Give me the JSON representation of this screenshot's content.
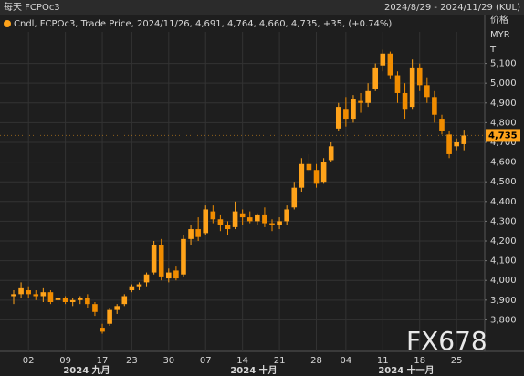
{
  "chart_data": {
    "type": "candlestick",
    "title": "每天 FCPOc3",
    "date_range": "2024/8/29 - 2024/11/29 (KUL)",
    "legend_text": "Cndl, FCPOc3, Trade Price, 2024/11/26, 4,691, 4,764, 4,660, 4,735, +35, (+0.74%)",
    "y_axis_labels": [
      "价格",
      "MYR",
      "T"
    ],
    "watermark": "FX678",
    "categories": [
      null,
      null,
      "02",
      null,
      null,
      null,
      null,
      "09",
      null,
      null,
      null,
      null,
      "17",
      null,
      null,
      null,
      "23",
      null,
      null,
      null,
      null,
      "30",
      null,
      null,
      null,
      null,
      "07",
      null,
      null,
      null,
      null,
      "14",
      null,
      null,
      null,
      null,
      "21",
      null,
      null,
      null,
      null,
      "28",
      null,
      null,
      null,
      "04",
      null,
      null,
      null,
      null,
      "11",
      null,
      null,
      null,
      null,
      "18",
      null,
      null,
      null,
      null,
      "25",
      null
    ],
    "month_labels": [
      "2024 九月",
      "2024 十月",
      "2024 十一月"
    ],
    "up_color": "#ffa31a",
    "down_color": "#f08c00",
    "open": [
      3920,
      3930,
      3950,
      3930,
      3920,
      3940,
      3900,
      3910,
      3890,
      3900,
      3910,
      3880,
      3760,
      3780,
      3850,
      3880,
      3950,
      3970,
      3990,
      4040,
      4180,
      4010,
      4050,
      4030,
      4210,
      4260,
      4240,
      4350,
      4310,
      4280,
      4270,
      4340,
      4320,
      4300,
      4330,
      4290,
      4280,
      4300,
      4370,
      4470,
      4590,
      4560,
      4500,
      4610,
      4770,
      4870,
      4820,
      4910,
      4900,
      4970,
      5090,
      5150,
      5040,
      4950,
      4880,
      5080,
      4990,
      4930,
      4820,
      4740,
      4680,
      4691
    ],
    "high": [
      3950,
      3990,
      3970,
      3950,
      3960,
      3950,
      3930,
      3920,
      3910,
      3920,
      3930,
      3890,
      3780,
      3860,
      3880,
      3930,
      3980,
      3990,
      4040,
      4200,
      4210,
      4060,
      4070,
      4230,
      4280,
      4320,
      4380,
      4380,
      4330,
      4300,
      4400,
      4360,
      4350,
      4340,
      4370,
      4310,
      4320,
      4380,
      4500,
      4620,
      4640,
      4590,
      4620,
      4700,
      4900,
      4930,
      4940,
      4950,
      5000,
      5100,
      5170,
      5160,
      5060,
      5000,
      5120,
      5100,
      5030,
      4960,
      4840,
      4760,
      4720,
      4764
    ],
    "low": [
      3880,
      3910,
      3910,
      3900,
      3890,
      3880,
      3880,
      3880,
      3870,
      3880,
      3860,
      3820,
      3730,
      3770,
      3830,
      3870,
      3940,
      3950,
      3970,
      4030,
      4000,
      3990,
      4000,
      4020,
      4180,
      4200,
      4230,
      4290,
      4250,
      4230,
      4260,
      4280,
      4290,
      4280,
      4270,
      4250,
      4260,
      4280,
      4360,
      4450,
      4550,
      4470,
      4490,
      4600,
      4760,
      4780,
      4800,
      4850,
      4880,
      4960,
      5060,
      5020,
      4900,
      4820,
      4870,
      4960,
      4900,
      4800,
      4740,
      4620,
      4660,
      4660
    ],
    "close": [
      3930,
      3960,
      3930,
      3920,
      3940,
      3890,
      3910,
      3890,
      3900,
      3910,
      3880,
      3840,
      3740,
      3850,
      3870,
      3920,
      3970,
      3980,
      4030,
      4180,
      4020,
      4040,
      4010,
      4210,
      4260,
      4220,
      4360,
      4310,
      4280,
      4260,
      4350,
      4320,
      4300,
      4330,
      4290,
      4280,
      4300,
      4360,
      4470,
      4590,
      4560,
      4490,
      4600,
      4680,
      4880,
      4820,
      4920,
      4900,
      4960,
      5080,
      5150,
      5040,
      4950,
      4870,
      5080,
      4990,
      4930,
      4840,
      4760,
      4640,
      4700,
      4735
    ],
    "last_price": {
      "value": 4735,
      "label": "4,735"
    },
    "last_price_color": "#ffa31a",
    "ylim": [
      3640,
      5260
    ],
    "yticks": [
      {
        "value": 3800,
        "label": "3,800"
      },
      {
        "value": 3900,
        "label": "3,900"
      },
      {
        "value": 4000,
        "label": "4,000"
      },
      {
        "value": 4100,
        "label": "4,100"
      },
      {
        "value": 4200,
        "label": "4,200"
      },
      {
        "value": 4300,
        "label": "4,300"
      },
      {
        "value": 4400,
        "label": "4,400"
      },
      {
        "value": 4500,
        "label": "4,500"
      },
      {
        "value": 4600,
        "label": "4,600"
      },
      {
        "value": 4700,
        "label": "4,700"
      },
      {
        "value": 4800,
        "label": "4,800"
      },
      {
        "value": 4900,
        "label": "4,900"
      },
      {
        "value": 5000,
        "label": "5,000"
      },
      {
        "value": 5100,
        "label": "5,100"
      }
    ],
    "grid": true
  }
}
